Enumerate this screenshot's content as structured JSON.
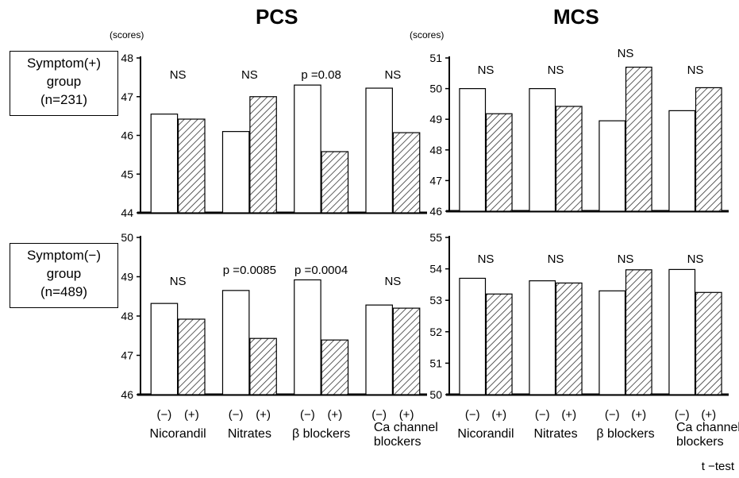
{
  "headings": {
    "left": "PCS",
    "right": "MCS"
  },
  "groups": [
    {
      "line1": "Symptom(+)",
      "line2": "group",
      "line3": "(n=231)"
    },
    {
      "line1": "Symptom(−)",
      "line2": "group",
      "line3": "(n=489)"
    }
  ],
  "footnote": "t −test",
  "chart_data": [
    {
      "type": "bar",
      "panel": "PCS",
      "group": "Symptom(+) group (n=231)",
      "unit": "(scores)",
      "categories": [
        "Nicorandil",
        "Nitrates",
        "β blockers",
        "Ca channel blockers"
      ],
      "sublabels": [
        "(−)",
        "(+)"
      ],
      "series": [
        {
          "name": "(−)",
          "values": [
            46.55,
            46.1,
            47.3,
            47.22
          ]
        },
        {
          "name": "(+)",
          "values": [
            46.42,
            47.0,
            45.58,
            46.07
          ]
        }
      ],
      "annotations": [
        "NS",
        "NS",
        "p =0.08",
        "NS"
      ],
      "ylim": [
        44,
        48
      ],
      "yticks": [
        44,
        45,
        46,
        47,
        48
      ]
    },
    {
      "type": "bar",
      "panel": "MCS",
      "group": "Symptom(+) group (n=231)",
      "unit": "(scores)",
      "categories": [
        "Nicorandil",
        "Nitrates",
        "β blockers",
        "Ca channel blockers"
      ],
      "sublabels": [
        "(−)",
        "(+)"
      ],
      "series": [
        {
          "name": "(−)",
          "values": [
            50.0,
            50.0,
            48.95,
            49.28
          ]
        },
        {
          "name": "(+)",
          "values": [
            49.18,
            49.42,
            50.7,
            50.03
          ]
        }
      ],
      "annotations": [
        "NS",
        "NS",
        "NS",
        "NS"
      ],
      "ylim": [
        46,
        51
      ],
      "yticks": [
        46,
        47,
        48,
        49,
        50,
        51
      ]
    },
    {
      "type": "bar",
      "panel": "PCS",
      "group": "Symptom(−) group (n=489)",
      "categories": [
        "Nicorandil",
        "Nitrates",
        "β blockers",
        "Ca channel blockers"
      ],
      "sublabels": [
        "(−)",
        "(+)"
      ],
      "series": [
        {
          "name": "(−)",
          "values": [
            48.32,
            48.65,
            48.92,
            48.28
          ]
        },
        {
          "name": "(+)",
          "values": [
            47.92,
            47.43,
            47.39,
            48.2
          ]
        }
      ],
      "annotations": [
        "NS",
        "p =0.0085",
        "p =0.0004",
        "NS"
      ],
      "ylim": [
        46,
        50
      ],
      "yticks": [
        46,
        47,
        48,
        49,
        50
      ]
    },
    {
      "type": "bar",
      "panel": "MCS",
      "group": "Symptom(−) group (n=489)",
      "categories": [
        "Nicorandil",
        "Nitrates",
        "β blockers",
        "Ca channel blockers"
      ],
      "sublabels": [
        "(−)",
        "(+)"
      ],
      "series": [
        {
          "name": "(−)",
          "values": [
            53.7,
            53.62,
            53.3,
            53.98
          ]
        },
        {
          "name": "(+)",
          "values": [
            53.2,
            53.55,
            53.97,
            53.25
          ]
        }
      ],
      "annotations": [
        "NS",
        "NS",
        "NS",
        "NS"
      ],
      "ylim": [
        50,
        55
      ],
      "yticks": [
        50,
        51,
        52,
        53,
        54,
        55
      ]
    }
  ]
}
